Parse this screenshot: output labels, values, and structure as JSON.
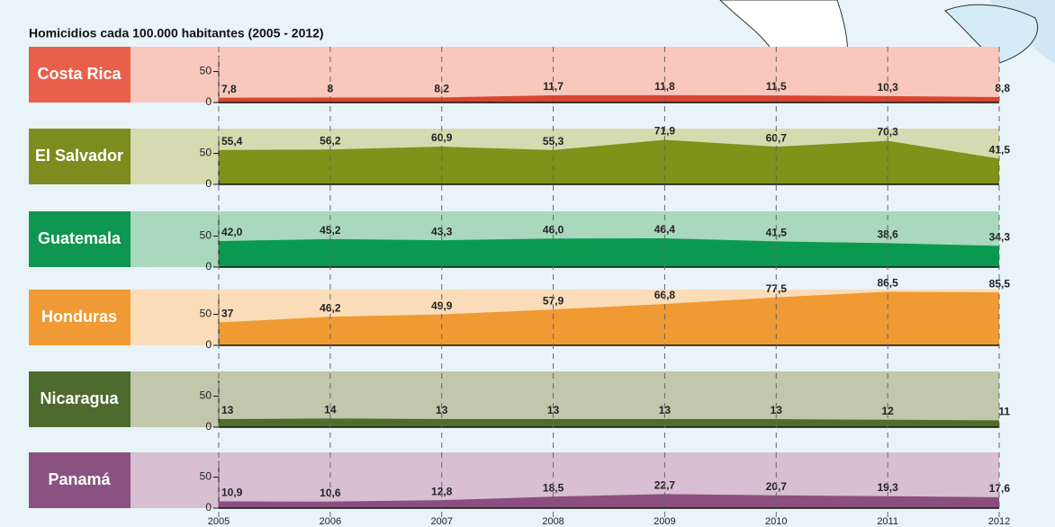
{
  "chart_data": {
    "type": "area",
    "title": "Homicidios cada 100.000 habitantes (2005 - 2012)",
    "x": [
      2005,
      2006,
      2007,
      2008,
      2009,
      2010,
      2011,
      2012
    ],
    "ylim": [
      0,
      90
    ],
    "yticks": [
      0,
      50
    ],
    "series": [
      {
        "name": "Costa Rica",
        "color": "#d9452f",
        "label_color": "#e8604c",
        "background": "#f8c8bd",
        "values": [
          7.8,
          8,
          8.2,
          11.7,
          11.8,
          11.5,
          10.3,
          8.8
        ],
        "value_labels": [
          "7,8",
          "8",
          "8,2",
          "11,7",
          "11,8",
          "11,5",
          "10,3",
          "8,8"
        ]
      },
      {
        "name": "El Salvador",
        "color": "#7f9219",
        "label_color": "#7d8c1e",
        "background": "#d6dab1",
        "values": [
          55.4,
          56.2,
          60.9,
          55.3,
          71.9,
          60.7,
          70.3,
          41.5
        ],
        "value_labels": [
          "55,4",
          "56,2",
          "60,9",
          "55,3",
          "71,9",
          "60,7",
          "70,3",
          "41,5"
        ]
      },
      {
        "name": "Guatemala",
        "color": "#0a9a4f",
        "label_color": "#0f9650",
        "background": "#a9d8bc",
        "values": [
          42.0,
          45.2,
          43.3,
          46.0,
          46.4,
          41.5,
          38.6,
          34.3
        ],
        "value_labels": [
          "42,0",
          "45,2",
          "43,3",
          "46,0",
          "46,4",
          "41,5",
          "38,6",
          "34,3"
        ]
      },
      {
        "name": "Honduras",
        "color": "#f09a33",
        "label_color": "#ef9a34",
        "background": "#fbdcb9",
        "values": [
          37,
          46.2,
          49.9,
          57.9,
          66.8,
          77.5,
          86.5,
          85.5
        ],
        "value_labels": [
          "37",
          "46,2",
          "49,9",
          "57,9",
          "66,8",
          "77,5",
          "86,5",
          "85,5"
        ]
      },
      {
        "name": "Nicaragua",
        "color": "#4e6c2a",
        "label_color": "#4e6a2e",
        "background": "#c2c6ab",
        "values": [
          13,
          14,
          13,
          13,
          13,
          13,
          12,
          11
        ]
      },
      {
        "name": "Panamá",
        "color": "#8b4f7f",
        "label_color": "#8a5280",
        "background": "#d9bfd3",
        "values": [
          10.9,
          10.6,
          12.8,
          18.5,
          22.7,
          20.7,
          19.3,
          17.6
        ],
        "value_labels": [
          "10,9",
          "10,6",
          "12,8",
          "18,5",
          "22,7",
          "20,7",
          "19,3",
          "17,6"
        ]
      }
    ]
  }
}
